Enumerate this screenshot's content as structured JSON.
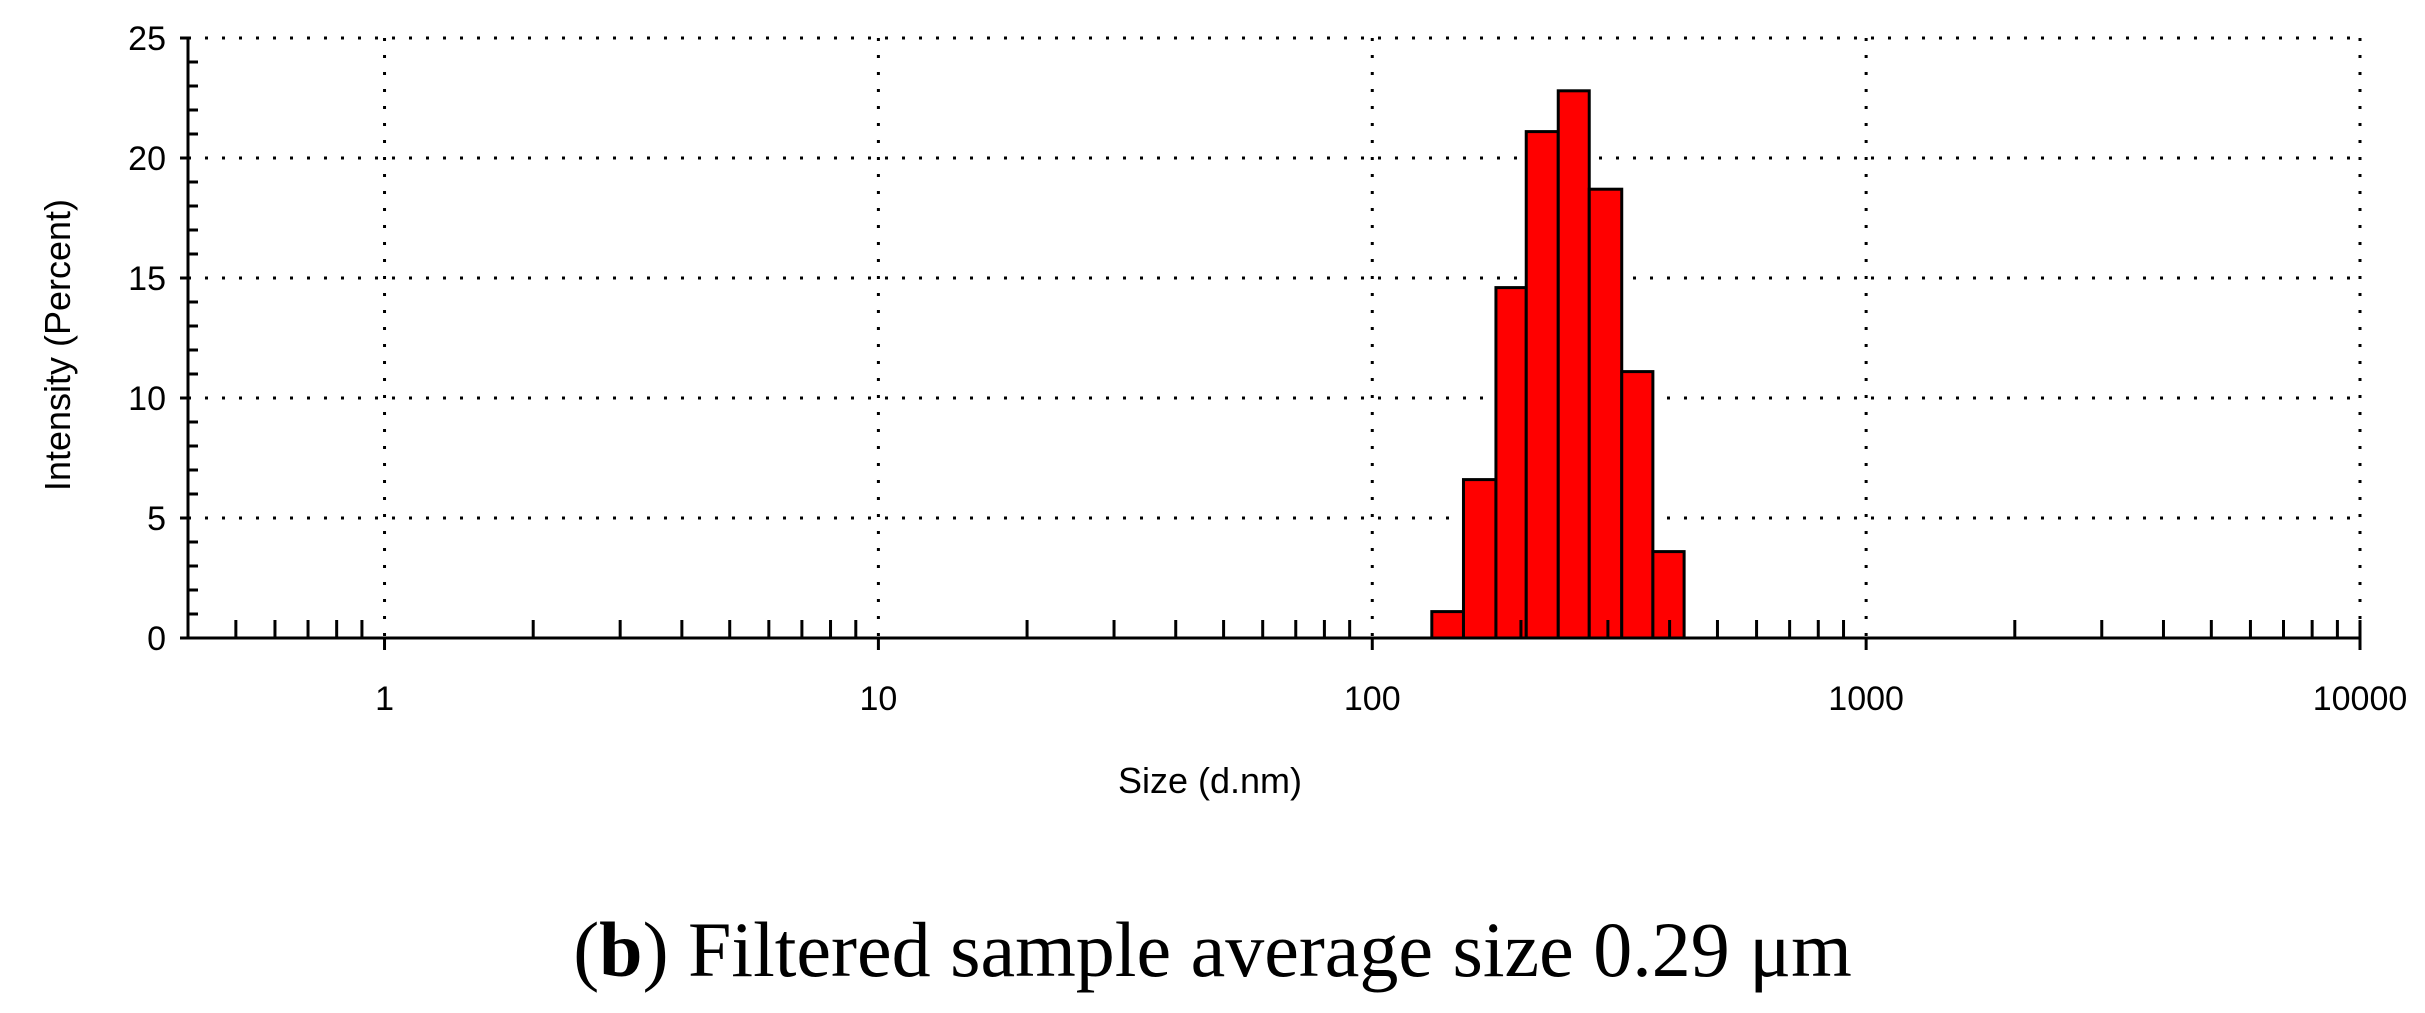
{
  "chart_data": {
    "type": "bar",
    "x_scale": "log",
    "xlabel": "Size (d.nm)",
    "ylabel": "Intensity (Percent)",
    "xlim": [
      0.4,
      10000
    ],
    "ylim": [
      0,
      25
    ],
    "x_ticks": [
      "1",
      "10",
      "100",
      "1000",
      "10000"
    ],
    "y_ticks": [
      "0",
      "5",
      "10",
      "15",
      "20",
      "25"
    ],
    "grid": true,
    "bar_color": "#ff0000",
    "bars": [
      {
        "x_from": 132,
        "x_to": 153,
        "value": 1.1
      },
      {
        "x_from": 153,
        "x_to": 178,
        "value": 6.6
      },
      {
        "x_from": 178,
        "x_to": 205,
        "value": 14.6
      },
      {
        "x_from": 205,
        "x_to": 238,
        "value": 21.1
      },
      {
        "x_from": 238,
        "x_to": 275,
        "value": 22.8
      },
      {
        "x_from": 275,
        "x_to": 320,
        "value": 18.7
      },
      {
        "x_from": 320,
        "x_to": 370,
        "value": 11.1
      },
      {
        "x_from": 370,
        "x_to": 428,
        "value": 3.6
      }
    ]
  },
  "caption": {
    "prefix": "(",
    "bold": "b",
    "text": ") Filtered sample average size 0.29 μm"
  }
}
